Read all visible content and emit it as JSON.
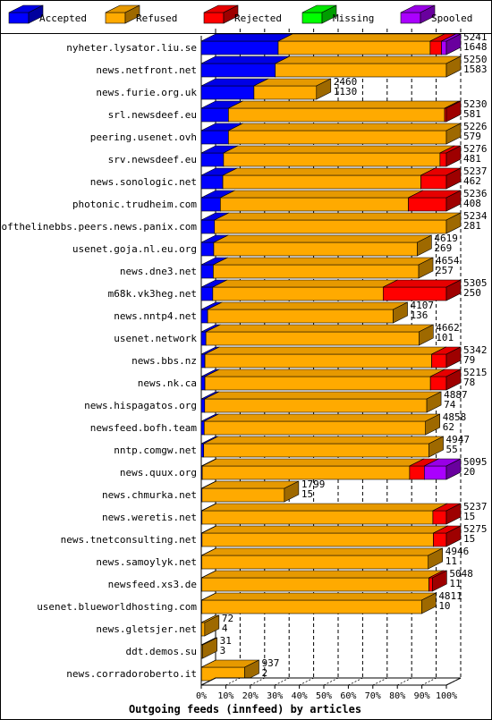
{
  "chart_data": {
    "type": "bar",
    "orientation": "horizontal",
    "stacked": true,
    "percent_scale": true,
    "title": "Outgoing feeds (innfeed) by articles",
    "xlim": [
      0,
      100
    ],
    "x_ticks": [
      "0%",
      "10%",
      "20%",
      "30%",
      "40%",
      "50%",
      "60%",
      "70%",
      "80%",
      "90%",
      "100%"
    ],
    "legend": [
      {
        "name": "Accepted",
        "color": "#0000ff"
      },
      {
        "name": "Refused",
        "color": "#ffaa00"
      },
      {
        "name": "Rejected",
        "color": "#ff0000"
      },
      {
        "name": "Missing",
        "color": "#00ff00"
      },
      {
        "name": "Spooled",
        "color": "#aa00ff"
      }
    ],
    "legend_placement": "top",
    "rows": [
      {
        "label": "nyheter.lysator.liu.se",
        "total": "5241",
        "accepted": "1648",
        "pct": [
          31.4,
          62.0,
          4.6,
          0,
          2.0
        ]
      },
      {
        "label": "news.netfront.net",
        "total": "5250",
        "accepted": "1583",
        "pct": [
          30.2,
          69.8,
          0,
          0,
          0
        ]
      },
      {
        "label": "news.furie.org.uk",
        "total": "2460",
        "accepted": "1130",
        "pct": [
          21.5,
          25.5,
          0,
          0,
          0
        ]
      },
      {
        "label": "srl.newsdeef.eu",
        "total": "5230",
        "accepted": "581",
        "pct": [
          11.1,
          88.2,
          0.7,
          0,
          0
        ]
      },
      {
        "label": "peering.usenet.ovh",
        "total": "5226",
        "accepted": "579",
        "pct": [
          11.1,
          88.9,
          0,
          0,
          0
        ]
      },
      {
        "label": "srv.newsdeef.eu",
        "total": "5276",
        "accepted": "481",
        "pct": [
          9.1,
          88.3,
          2.6,
          0,
          0
        ]
      },
      {
        "label": "news.sonologic.net",
        "total": "5237",
        "accepted": "462",
        "pct": [
          8.8,
          80.8,
          10.4,
          0,
          0
        ]
      },
      {
        "label": "photonic.trudheim.com",
        "total": "5236",
        "accepted": "408",
        "pct": [
          7.8,
          76.7,
          15.5,
          0,
          0
        ]
      },
      {
        "label": "endofthelinebbs.peers.news.panix.com",
        "total": "5234",
        "accepted": "281",
        "pct": [
          5.4,
          94.6,
          0,
          0,
          0
        ]
      },
      {
        "label": "usenet.goja.nl.eu.org",
        "total": "4619",
        "accepted": "269",
        "pct": [
          5.1,
          83.0,
          0,
          0,
          0
        ]
      },
      {
        "label": "news.dne3.net",
        "total": "4654",
        "accepted": "257",
        "pct": [
          4.9,
          83.8,
          0,
          0,
          0
        ]
      },
      {
        "label": "m68k.vk3heg.net",
        "total": "5305",
        "accepted": "250",
        "pct": [
          4.7,
          69.5,
          25.8,
          0,
          0
        ]
      },
      {
        "label": "news.nntp4.net",
        "total": "4107",
        "accepted": "136",
        "pct": [
          2.6,
          75.7,
          0,
          0,
          0
        ]
      },
      {
        "label": "usenet.network",
        "total": "4662",
        "accepted": "101",
        "pct": [
          1.9,
          86.9,
          0,
          0,
          0
        ]
      },
      {
        "label": "news.bbs.nz",
        "total": "5342",
        "accepted": "79",
        "pct": [
          1.5,
          92.5,
          6.0,
          0,
          0
        ]
      },
      {
        "label": "news.nk.ca",
        "total": "5215",
        "accepted": "78",
        "pct": [
          1.5,
          92.0,
          6.5,
          0,
          0
        ]
      },
      {
        "label": "news.hispagatos.org",
        "total": "4887",
        "accepted": "74",
        "pct": [
          1.4,
          90.6,
          0,
          0,
          0
        ]
      },
      {
        "label": "newsfeed.bofh.team",
        "total": "4858",
        "accepted": "62",
        "pct": [
          1.2,
          90.3,
          0,
          0,
          0
        ]
      },
      {
        "label": "nntp.comgw.net",
        "total": "4947",
        "accepted": "55",
        "pct": [
          1.0,
          91.9,
          0,
          0,
          0
        ]
      },
      {
        "label": "news.quux.org",
        "total": "5095",
        "accepted": "20",
        "pct": [
          0.4,
          84.6,
          6.0,
          0,
          9.0
        ]
      },
      {
        "label": "news.chmurka.net",
        "total": "1799",
        "accepted": "15",
        "pct": [
          0.3,
          33.6,
          0,
          0,
          0
        ]
      },
      {
        "label": "news.weretis.net",
        "total": "5237",
        "accepted": "15",
        "pct": [
          0.3,
          94.2,
          5.5,
          0,
          0
        ]
      },
      {
        "label": "news.tnetconsulting.net",
        "total": "5275",
        "accepted": "15",
        "pct": [
          0.3,
          94.4,
          5.3,
          0,
          0
        ]
      },
      {
        "label": "news.samoylyk.net",
        "total": "4946",
        "accepted": "11",
        "pct": [
          0.2,
          92.4,
          0,
          0,
          0
        ]
      },
      {
        "label": "newsfeed.xs3.de",
        "total": "5048",
        "accepted": "11",
        "pct": [
          0.2,
          92.7,
          1.4,
          0,
          0
        ]
      },
      {
        "label": "usenet.blueworldhosting.com",
        "total": "4811",
        "accepted": "10",
        "pct": [
          0.2,
          89.7,
          0,
          0,
          0
        ]
      },
      {
        "label": "news.gletsjer.net",
        "total": "72",
        "accepted": "4",
        "pct": [
          0.1,
          1.3,
          0,
          0,
          0
        ]
      },
      {
        "label": "ddt.demos.su",
        "total": "31",
        "accepted": "3",
        "pct": [
          0.1,
          0.5,
          0,
          0,
          0
        ]
      },
      {
        "label": "news.corradoroberto.it",
        "total": "937",
        "accepted": "2",
        "pct": [
          0.1,
          17.6,
          0,
          0,
          0
        ]
      }
    ]
  }
}
